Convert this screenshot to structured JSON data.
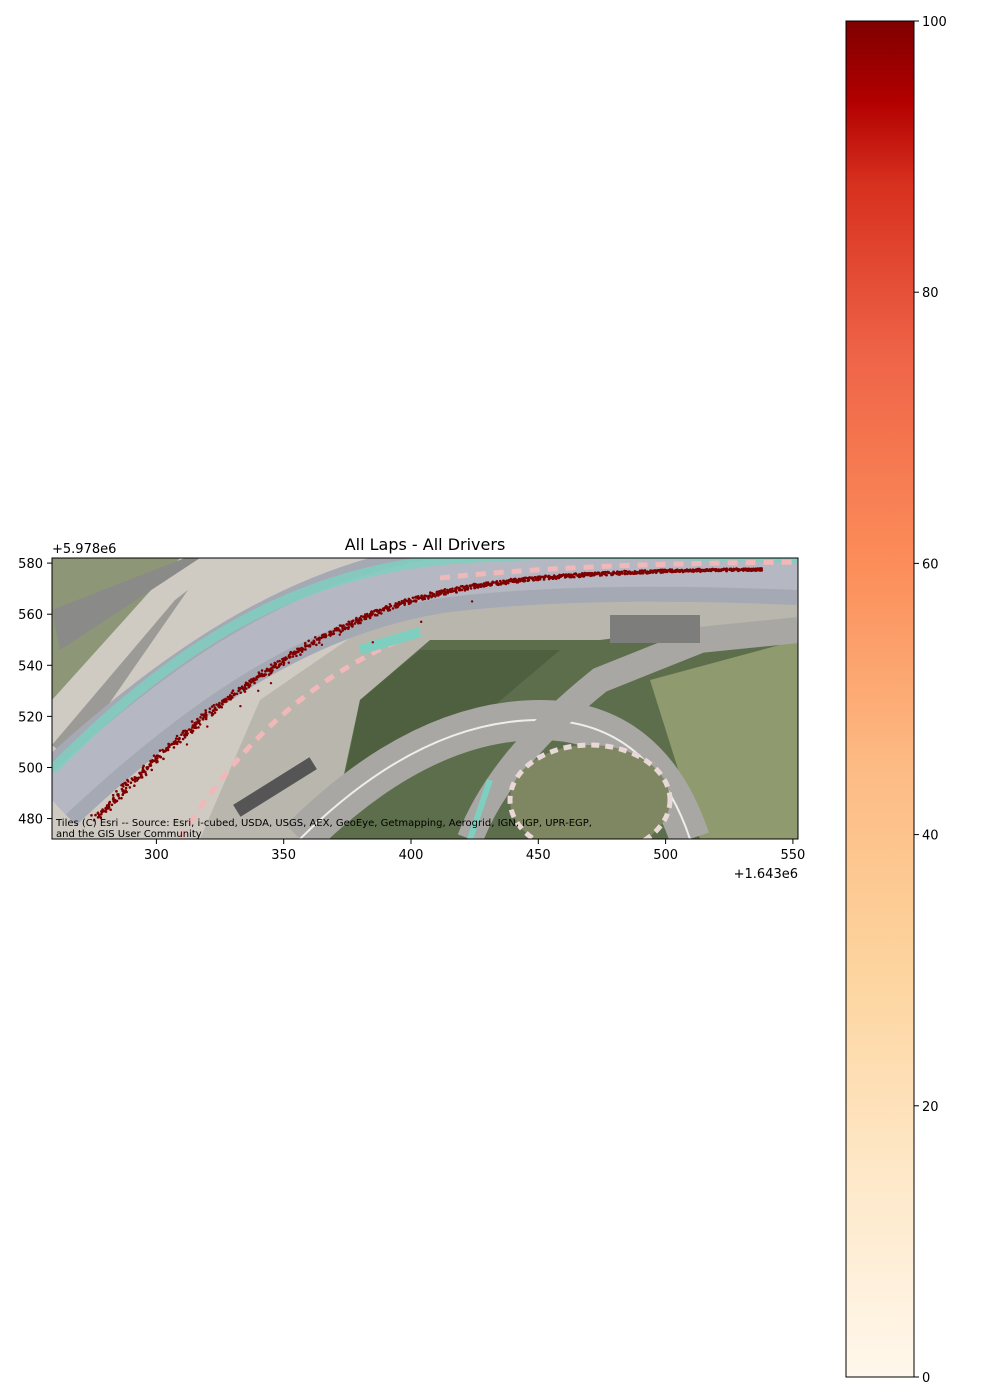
{
  "title": "All Laps - All Drivers",
  "x_offset_label": "+1.643e6",
  "y_offset_label": "+5.978e6",
  "attribution_line1": "Tiles (C) Esri -- Source: Esri, i-cubed, USDA, USGS, AEX, GeoEye, Getmapping, Aerogrid, IGN, IGP, UPR-EGP,",
  "attribution_line2": "and the GIS User Community",
  "chart_data": {
    "type": "scatter",
    "title": "All Laps - All Drivers",
    "xlim": [
      259,
      552
    ],
    "ylim": [
      472,
      582
    ],
    "x_ticks": [
      300,
      350,
      400,
      450,
      500,
      550
    ],
    "y_ticks": [
      480,
      500,
      520,
      540,
      560,
      580
    ],
    "x_tick_labels": [
      "300",
      "350",
      "400",
      "450",
      "500",
      "550"
    ],
    "y_tick_labels": [
      "480",
      "500",
      "520",
      "540",
      "560",
      "580"
    ],
    "colormap": "OrRd",
    "colorbar_range": [
      0,
      100
    ],
    "colorbar_ticks": [
      0,
      20,
      40,
      60,
      80,
      100
    ],
    "colorbar_tick_labels": [
      "0",
      "20",
      "40",
      "60",
      "80",
      "100"
    ],
    "marker_color": "#7f0000",
    "racing_line": {
      "x": [
        276,
        290,
        305,
        320,
        335,
        350,
        365,
        380,
        395,
        410,
        425,
        440,
        455,
        470,
        485,
        500,
        515,
        530,
        538
      ],
      "y": [
        480,
        494,
        508,
        521,
        532,
        542,
        551,
        558,
        564,
        568,
        571,
        573,
        574.5,
        575.6,
        576.3,
        576.9,
        577.2,
        577.4,
        577.5
      ]
    },
    "outliers": [
      {
        "x": 404,
        "y": 557
      },
      {
        "x": 385,
        "y": 549
      },
      {
        "x": 424,
        "y": 565
      },
      {
        "x": 365,
        "y": 548
      },
      {
        "x": 345,
        "y": 533
      },
      {
        "x": 340,
        "y": 530
      },
      {
        "x": 320,
        "y": 516
      },
      {
        "x": 312,
        "y": 509
      },
      {
        "x": 296,
        "y": 497
      },
      {
        "x": 288,
        "y": 491
      },
      {
        "x": 300,
        "y": 502
      },
      {
        "x": 352,
        "y": 541
      },
      {
        "x": 372,
        "y": 552
      },
      {
        "x": 333,
        "y": 524
      }
    ]
  }
}
